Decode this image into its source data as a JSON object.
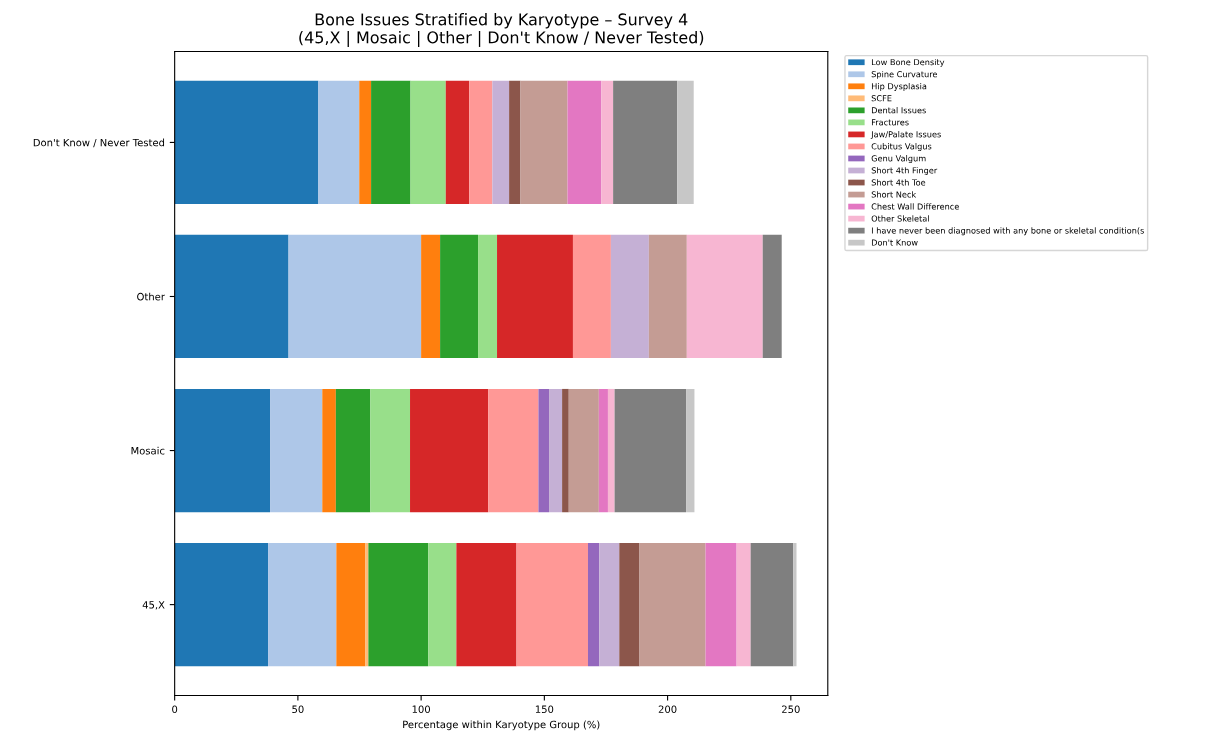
{
  "chart_data": {
    "type": "bar",
    "orientation": "horizontal",
    "stacked": true,
    "title": "Bone Issues Stratified by Karyotype – Survey 4\n(45,X | Mosaic | Other | Don't Know / Never Tested)",
    "xlabel": "Percentage within Karyotype Group (%)",
    "categories": [
      "Don't Know / Never Tested",
      "Other",
      "Mosaic",
      "45,X"
    ],
    "xlim": [
      0,
      265
    ],
    "xticks": [
      0,
      50,
      100,
      150,
      200,
      250
    ],
    "grid": false,
    "legend": "top right",
    "series": [
      {
        "name": "Low Bone Density",
        "color": "#1f77b4",
        "values": [
          58.3,
          46.2,
          38.7,
          37.9
        ]
      },
      {
        "name": "Spine Curvature",
        "color": "#aec7e8",
        "values": [
          16.6,
          53.8,
          21.2,
          27.7
        ]
      },
      {
        "name": "Hip Dysplasia",
        "color": "#ff7f0e",
        "values": [
          4.8,
          7.7,
          5.5,
          11.8
        ]
      },
      {
        "name": "SCFE",
        "color": "#ffbb78",
        "values": [
          0,
          0,
          0,
          1.2
        ]
      },
      {
        "name": "Dental Issues",
        "color": "#2ca02c",
        "values": [
          16.0,
          15.4,
          14.0,
          24.3
        ]
      },
      {
        "name": "Fractures",
        "color": "#98df8a",
        "values": [
          14.3,
          7.7,
          16.1,
          11.4
        ]
      },
      {
        "name": "Jaw/Palate Issues",
        "color": "#d62728",
        "values": [
          9.5,
          30.8,
          31.7,
          24.4
        ]
      },
      {
        "name": "Cubitus Valgus",
        "color": "#ff9896",
        "values": [
          9.4,
          15.4,
          20.4,
          29.0
        ]
      },
      {
        "name": "Genu Valgum",
        "color": "#9467bd",
        "values": [
          0,
          0,
          4.3,
          4.6
        ]
      },
      {
        "name": "Short 4th Finger",
        "color": "#c5b0d5",
        "values": [
          6.8,
          15.4,
          5.3,
          8.1
        ]
      },
      {
        "name": "Short 4th Toe",
        "color": "#8c564b",
        "values": [
          4.6,
          0,
          2.7,
          8.2
        ]
      },
      {
        "name": "Short Neck",
        "color": "#c49c94",
        "values": [
          19.1,
          15.4,
          12.2,
          26.8
        ]
      },
      {
        "name": "Chest Wall Difference",
        "color": "#e377c2",
        "values": [
          13.7,
          0,
          3.7,
          12.6
        ]
      },
      {
        "name": "Other Skeletal",
        "color": "#f7b6d2",
        "values": [
          4.8,
          30.8,
          2.7,
          5.7
        ]
      },
      {
        "name": "I have never been diagnosed with any bone or skeletal condition(s",
        "color": "#7f7f7f",
        "values": [
          26.0,
          7.7,
          29.0,
          17.3
        ]
      },
      {
        "name": "Don't Know",
        "color": "#c7c7c7",
        "values": [
          6.7,
          0,
          3.4,
          1.3
        ]
      }
    ]
  }
}
